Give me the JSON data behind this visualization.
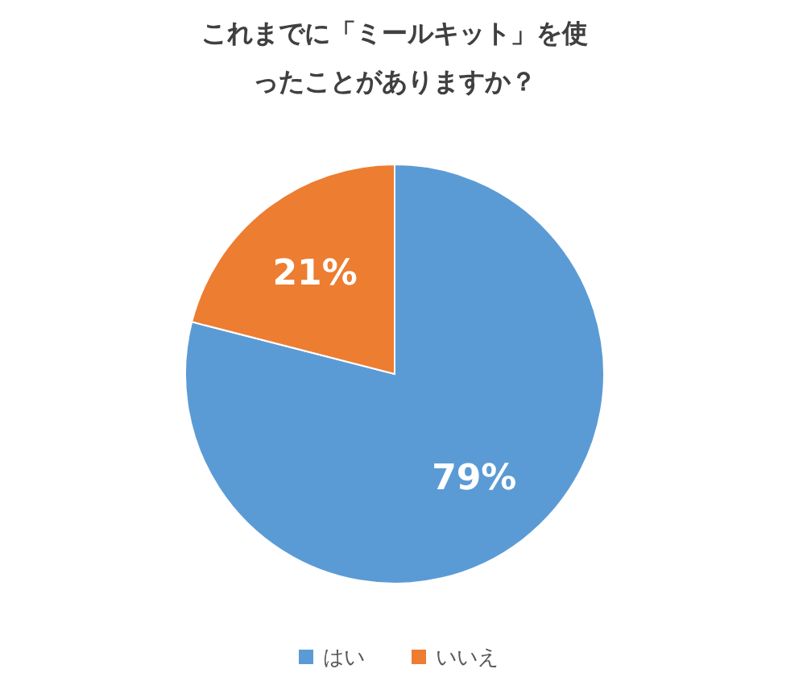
{
  "chart_data": {
    "type": "pie",
    "title": "これまでに「ミールキット」を使ったことがありますか？",
    "categories": [
      "はい",
      "いいえ"
    ],
    "values": [
      79,
      21
    ],
    "colors": [
      "#5b9bd5",
      "#ed7d31"
    ],
    "value_labels": [
      "79%",
      "21%"
    ],
    "legend": "bottom"
  }
}
